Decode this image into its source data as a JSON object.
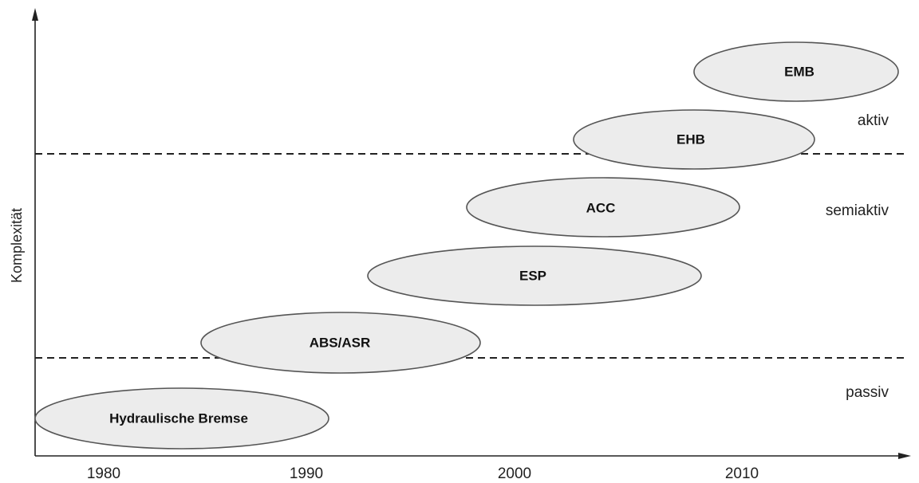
{
  "y_axis_label": "Komplexität",
  "x_ticks": [
    "1980",
    "1990",
    "2000",
    "2010"
  ],
  "zones": {
    "aktiv": "aktiv",
    "semiaktiv": "semiaktiv",
    "passiv": "passiv"
  },
  "systems": [
    {
      "id": "hydraulische-bremse",
      "label": "Hydraulische Bremse"
    },
    {
      "id": "abs-asr",
      "label": "ABS/ASR"
    },
    {
      "id": "esp",
      "label": "ESP"
    },
    {
      "id": "acc",
      "label": "ACC"
    },
    {
      "id": "ehb",
      "label": "EHB"
    },
    {
      "id": "emb",
      "label": "EMB"
    }
  ],
  "colors": {
    "bubble_fill": "#ececec",
    "bubble_stroke": "#555555",
    "line": "#222222"
  }
}
